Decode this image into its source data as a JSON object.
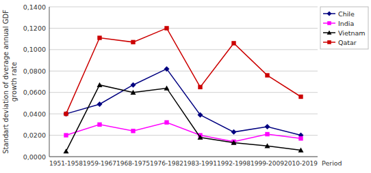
{
  "chart_data": {
    "type": "line",
    "y_label": "Standart deviation of dverage annual GDF\ngrowth rate",
    "x_label": "Period",
    "categories": [
      "1951-1958",
      "1959-1967",
      "1968-1975",
      "1976-1982",
      "1983-1991",
      "1992-1998",
      "1999-2009",
      "2010-2019"
    ],
    "series": [
      {
        "name": "Chile",
        "color": "#000080",
        "marker": "diamond",
        "values": [
          0.04,
          0.049,
          0.067,
          0.082,
          0.039,
          0.023,
          0.028,
          0.02
        ]
      },
      {
        "name": "India",
        "color": "#FF00FF",
        "marker": "square",
        "values": [
          0.02,
          0.03,
          0.024,
          0.032,
          0.02,
          0.014,
          0.021,
          0.017
        ]
      },
      {
        "name": "Vietnam",
        "color": "#000000",
        "marker": "triangle",
        "values": [
          0.005,
          0.067,
          0.06,
          0.064,
          0.018,
          0.013,
          0.01,
          0.006
        ]
      },
      {
        "name": "Qatar",
        "color": "#CC0000",
        "marker": "square",
        "values": [
          0.04,
          0.111,
          0.107,
          0.12,
          0.065,
          0.106,
          0.076,
          0.056
        ]
      }
    ],
    "ylim": [
      0.0,
      0.14
    ],
    "yticks": [
      {
        "value": 0.0,
        "label": "0,0000"
      },
      {
        "value": 0.02,
        "label": "0,0200"
      },
      {
        "value": 0.04,
        "label": "0,0400"
      },
      {
        "value": 0.06,
        "label": "0,0600"
      },
      {
        "value": 0.08,
        "label": "0,0800"
      },
      {
        "value": 0.1,
        "label": "0,1000"
      },
      {
        "value": 0.12,
        "label": "0,1200"
      },
      {
        "value": 0.14,
        "label": "0,1400"
      }
    ],
    "grid": true,
    "legend": "upper right"
  }
}
